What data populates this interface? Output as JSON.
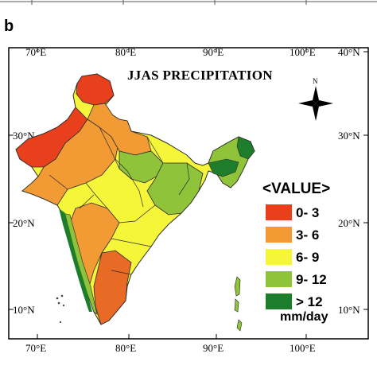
{
  "panel_label": "b",
  "map": {
    "title": "JJAS PRECIPITATION",
    "lon_ticks": [
      "70°E",
      "80°E",
      "90°E",
      "100°E"
    ],
    "lat_ticks": [
      "40°N",
      "30°N",
      "20°N",
      "10°N"
    ],
    "north_arrow_label": "N",
    "legend": {
      "title": "<VALUE>",
      "unit": "mm/day",
      "classes": [
        {
          "label": "0- 3",
          "color": "#e8401c"
        },
        {
          "label": "3- 6",
          "color": "#f29a33"
        },
        {
          "label": "6- 9",
          "color": "#f5f53a"
        },
        {
          "label": "9- 12",
          "color": "#8fc33a"
        },
        {
          "label": "> 12",
          "color": "#1e7d2a"
        }
      ]
    },
    "colors": {
      "frame": "#000000",
      "district_lines": "#3a3a3a"
    }
  }
}
